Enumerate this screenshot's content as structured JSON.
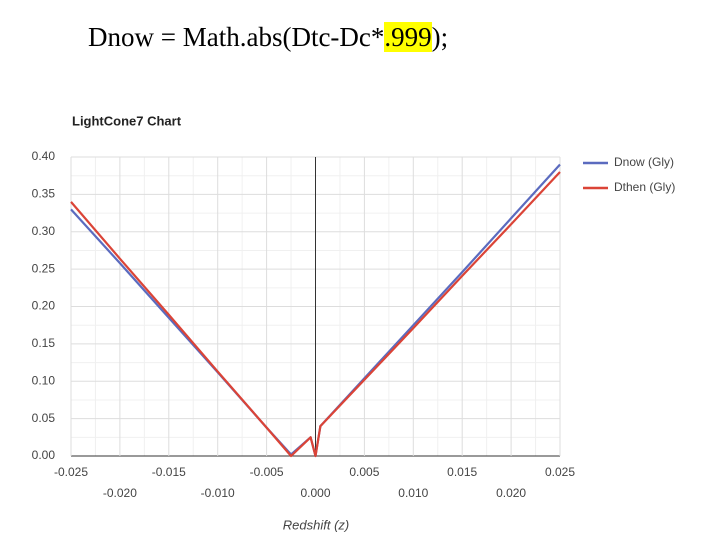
{
  "header": {
    "before": "Dnow = Math.abs(Dtc-Dc*",
    "highlight": ".999",
    "after": ");"
  },
  "chart_data": {
    "type": "line",
    "title": "LightCone7 Chart",
    "x_label": "Redshift (z)",
    "x": [
      -0.025,
      -0.02,
      -0.015,
      -0.01,
      -0.005,
      -0.0025,
      -0.0005,
      0,
      0.0005,
      0.005,
      0.01,
      0.015,
      0.02,
      0.025
    ],
    "series": [
      {
        "name": "Dnow (Gly)",
        "color": "#5b6bbf",
        "values": [
          0.33,
          0.258,
          0.185,
          0.112,
          0.038,
          0.002,
          0.025,
          0,
          0.04,
          0.104,
          0.175,
          0.246,
          0.318,
          0.39
        ]
      },
      {
        "name": "Dthen (Gly)",
        "color": "#db4437",
        "values": [
          0.34,
          0.264,
          0.189,
          0.113,
          0.038,
          0,
          0.025,
          0,
          0.04,
          0.102,
          0.171,
          0.241,
          0.31,
          0.38
        ]
      }
    ],
    "xlim": [
      -0.025,
      0.025
    ],
    "xticks": [
      -0.025,
      {
        "value": -0.02,
        "label": "-0.020"
      },
      -0.015,
      {
        "value": -0.01,
        "label": "-0.010"
      },
      -0.005,
      {
        "value": 0,
        "label": "0.000"
      },
      0.005,
      {
        "value": 0.01,
        "label": "0.010"
      },
      0.015,
      {
        "value": 0.02,
        "label": "0.020"
      },
      0.025
    ],
    "ylim": [
      0,
      0.4
    ],
    "yticks": [
      {
        "value": 0,
        "label": "0.00"
      },
      {
        "value": 0.05,
        "label": "0.05"
      },
      {
        "value": 0.1,
        "label": "0.10"
      },
      {
        "value": 0.15,
        "label": "0.15"
      },
      {
        "value": 0.2,
        "label": "0.20"
      },
      {
        "value": 0.25,
        "label": "0.25"
      },
      {
        "value": 0.3,
        "label": "0.30"
      },
      {
        "value": 0.35,
        "label": "0.35"
      },
      {
        "value": 0.4,
        "label": "0.40"
      }
    ],
    "grid": true,
    "minor_grid": true,
    "legend": "right"
  }
}
